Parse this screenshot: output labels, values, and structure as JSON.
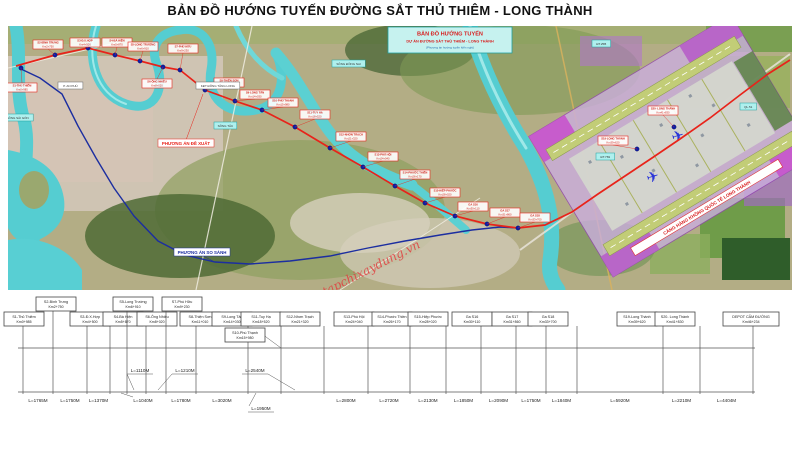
{
  "title": "BẢN ĐỒ HƯỚNG TUYẾN ĐƯỜNG SẮT THỦ THIÊM - LONG THÀNH",
  "map": {
    "legend": {
      "line1": "BẢN ĐỒ HƯỚNG TUYẾN",
      "line2": "DỰ ÁN ĐƯỜNG SẮT THỦ THIÊM - LONG THÀNH",
      "line3": "(Phương án hướng tuyến kiến nghị)"
    },
    "watermark": "tapchixaydung.vn",
    "route_options": {
      "proposed": "PHƯƠNG ÁN ĐỀ XUẤT",
      "comparison": "PHƯƠNG ÁN SO SÁNH"
    },
    "airport_banner": "CẢNG HÀNG KHÔNG QUỐC TẾ LONG THÀNH",
    "place_labels": [
      {
        "text": "SÔNG SÀI GÒN",
        "style": "cyan"
      },
      {
        "text": "SÔNG TẮC",
        "style": "cyan"
      },
      {
        "text": "SÔNG ĐỒNG NAI",
        "style": "cyan"
      },
      {
        "text": "ĐT.25B",
        "style": "cyan"
      },
      {
        "text": "ĐT.769",
        "style": "cyan"
      },
      {
        "text": "QL.51",
        "style": "cyan"
      },
      {
        "text": "P. AN PHÚ",
        "style": "white"
      },
      {
        "text": "KĐT ĐÔNG TĂNG LONG",
        "style": "white"
      }
    ]
  },
  "schematic": {
    "stations": [
      {
        "name": "S1-Thủ Thiêm",
        "km": "Km0+985"
      },
      {
        "name": "S2-Bình Trưng",
        "km": "Km2+750"
      },
      {
        "name": "S3-Đ.X.Hợp",
        "km": "Km4+500"
      },
      {
        "name": "S4-Bà Hiện",
        "km": "Km5+870"
      },
      {
        "name": "S5-Long Trường",
        "km": "Km6+910"
      },
      {
        "name": "S6-Ông Nhiêu",
        "km": "Km8+020"
      },
      {
        "name": "S7-Phú Hữu",
        "km": "Km9+230"
      },
      {
        "name": "S8-Thiện Sơn",
        "km": "Km11+010"
      },
      {
        "name": "S9-Long Tân",
        "km": "Km14+030"
      },
      {
        "name": "S10-Phú Thạnh",
        "km": "Km15+980"
      },
      {
        "name": "S11-Tuy Hạ",
        "km": "Km18+520"
      },
      {
        "name": "S12-Nhơn Trạch",
        "km": "Km21+320"
      },
      {
        "name": "S13-Phú Hội",
        "km": "Km24+040"
      },
      {
        "name": "S14-Phước Thiền",
        "km": "Km26+170"
      },
      {
        "name": "S15-Hiệp Phước",
        "km": "Km28+020"
      },
      {
        "name": "Ga S16",
        "km": "Km30+110"
      },
      {
        "name": "Ga S17",
        "km": "Km31+860"
      },
      {
        "name": "Ga S18",
        "km": "Km33+700"
      },
      {
        "name": "S19-Long Thành",
        "km": "Km39+620"
      },
      {
        "name": "S20- Long Thành",
        "km": "Km41+830"
      },
      {
        "name": "DEPOT CẤM ĐƯỜNG",
        "km": "Km46+234"
      }
    ],
    "segments": [
      "L=1765M",
      "L=1750M",
      "L=1370M",
      "L=1040M",
      "L=1110M",
      "L=1210M",
      "L=1780M",
      "L=3020M",
      "L=1950M",
      "L=2540M",
      "L=2800M",
      "L=2720M",
      "L=2130M",
      "L=1850M",
      "L=2090M",
      "L=1750M",
      "L=1840M",
      "L=5920M",
      "L=2210M",
      "L=4404M"
    ]
  },
  "colors": {
    "route_proposed": "#e8231a",
    "route_comparison": "#1c2ea0",
    "water": "#55cdd1",
    "station_dot": "#0f1fa8"
  }
}
